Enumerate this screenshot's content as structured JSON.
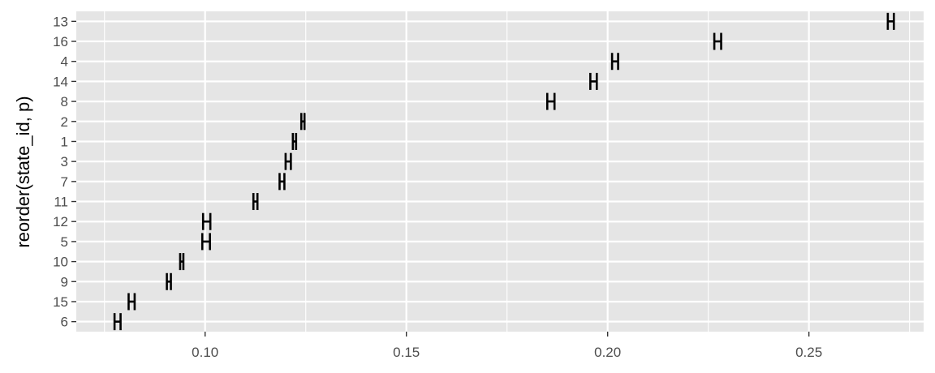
{
  "chart_data": {
    "type": "errorbar",
    "title": "",
    "xlabel": "",
    "ylabel": "reorder(state_id, p)",
    "xlim": [
      0.068,
      0.2785
    ],
    "x_ticks": [
      0.1,
      0.15,
      0.2,
      0.25
    ],
    "x_tick_labels": [
      "0.10",
      "0.15",
      "0.20",
      "0.25"
    ],
    "grid": true,
    "categories": [
      "6",
      "15",
      "9",
      "10",
      "5",
      "12",
      "11",
      "7",
      "3",
      "1",
      "2",
      "8",
      "14",
      "4",
      "16",
      "13"
    ],
    "series": [
      {
        "values": [
          {
            "category": "6",
            "low": 0.0775,
            "high": 0.079
          },
          {
            "category": "15",
            "low": 0.081,
            "high": 0.0825
          },
          {
            "category": "9",
            "low": 0.0905,
            "high": 0.0915
          },
          {
            "category": "10",
            "low": 0.0938,
            "high": 0.0946
          },
          {
            "category": "5",
            "low": 0.0993,
            "high": 0.1012
          },
          {
            "category": "12",
            "low": 0.0995,
            "high": 0.1013
          },
          {
            "category": "11",
            "low": 0.112,
            "high": 0.113
          },
          {
            "category": "7",
            "low": 0.1185,
            "high": 0.1197
          },
          {
            "category": "3",
            "low": 0.12,
            "high": 0.1213
          },
          {
            "category": "1",
            "low": 0.1218,
            "high": 0.1226
          },
          {
            "category": "2",
            "low": 0.1239,
            "high": 0.1247
          },
          {
            "category": "8",
            "low": 0.185,
            "high": 0.1868
          },
          {
            "category": "14",
            "low": 0.1957,
            "high": 0.1973
          },
          {
            "category": "4",
            "low": 0.2011,
            "high": 0.2026
          },
          {
            "category": "16",
            "low": 0.2265,
            "high": 0.2282
          },
          {
            "category": "13",
            "low": 0.2696,
            "high": 0.2711
          }
        ]
      }
    ],
    "colors": {
      "panel_bg": "#e5e5e5",
      "grid": "#ffffff",
      "mark": "#000000",
      "tick_text": "#4d4d4d",
      "axis_title": "#000000"
    }
  }
}
